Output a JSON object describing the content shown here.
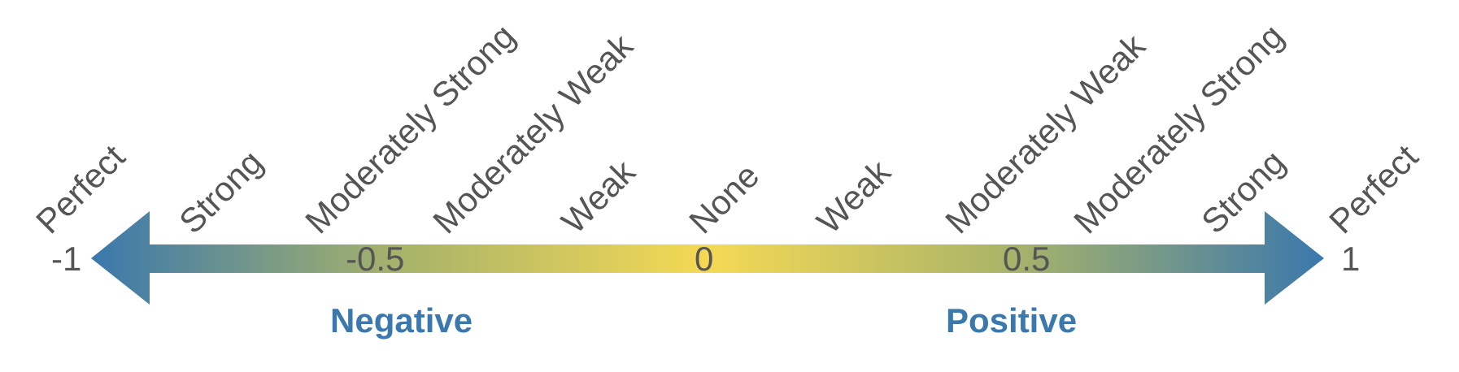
{
  "scale": {
    "colors": {
      "ends": "#3a78ad",
      "mid": "#f5d954",
      "text": "#555555",
      "side": "#3a78ad"
    },
    "labels": [
      "Perfect",
      "Strong",
      "Moderately Strong",
      "Moderately Weak",
      "Weak",
      "None",
      "Weak",
      "Moderately Weak",
      "Moderately Strong",
      "Strong",
      "Perfect"
    ],
    "ticks": [
      "-1",
      "-0.5",
      "0",
      "0.5",
      "1"
    ],
    "negative_label": "Negative",
    "positive_label": "Positive"
  }
}
